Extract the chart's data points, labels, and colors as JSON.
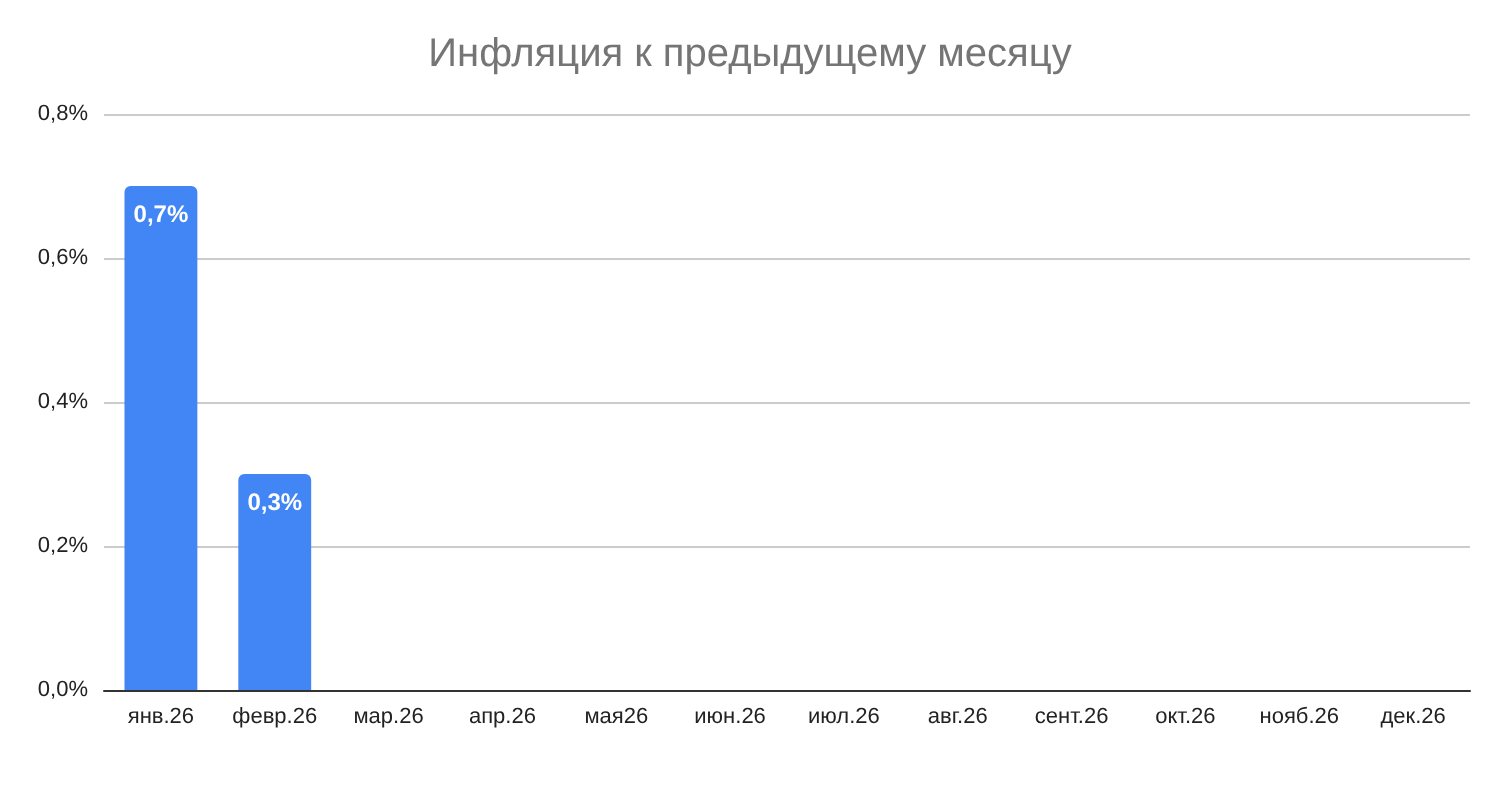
{
  "chart_data": {
    "type": "bar",
    "title": "Инфляция к предыдущему месяцу",
    "categories": [
      "янв.26",
      "февр.26",
      "мар.26",
      "апр.26",
      "мая26",
      "июн.26",
      "июл.26",
      "авг.26",
      "сент.26",
      "окт.26",
      "нояб.26",
      "дек.26"
    ],
    "values": [
      0.7,
      0.3,
      null,
      null,
      null,
      null,
      null,
      null,
      null,
      null,
      null,
      null
    ],
    "value_labels": [
      "0,7%",
      "0,3%",
      null,
      null,
      null,
      null,
      null,
      null,
      null,
      null,
      null,
      null
    ],
    "color": "#4285f4",
    "ylim": [
      0,
      0.8
    ],
    "yticks": [
      {
        "value": 0,
        "label": "0,0%"
      },
      {
        "value": 0.2,
        "label": "0,2%"
      },
      {
        "value": 0.4,
        "label": "0,4%"
      },
      {
        "value": 0.6,
        "label": "0,6%"
      },
      {
        "value": 0.8,
        "label": "0,8%"
      }
    ],
    "grid": "y"
  }
}
